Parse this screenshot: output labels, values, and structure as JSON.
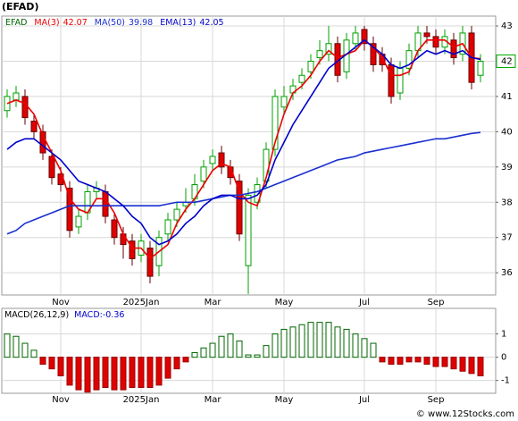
{
  "title": "(EFAD)",
  "watermark": "© www.12Stocks.com",
  "chart_data": [
    {
      "type": "candlestick",
      "symbol": "EFAD",
      "categories": [
        null,
        null,
        null,
        null,
        null,
        null,
        "Nov",
        null,
        null,
        null,
        null,
        null,
        null,
        null,
        null,
        "2025Jan",
        null,
        null,
        null,
        null,
        null,
        null,
        null,
        "Mar",
        null,
        null,
        null,
        null,
        null,
        null,
        null,
        "May",
        null,
        null,
        null,
        null,
        null,
        null,
        null,
        null,
        "Jul",
        null,
        null,
        null,
        null,
        null,
        null,
        null,
        "Sep",
        null,
        null,
        null,
        null,
        null
      ],
      "open": [
        40.6,
        40.9,
        41.0,
        40.3,
        40.0,
        39.3,
        38.8,
        38.4,
        37.3,
        37.7,
        38.3,
        38.3,
        37.5,
        37.1,
        36.9,
        36.5,
        36.7,
        36.2,
        37.1,
        37.5,
        37.9,
        38.1,
        38.6,
        39.1,
        39.4,
        39.0,
        38.6,
        36.2,
        38.0,
        38.6,
        39.5,
        40.7,
        41.1,
        41.4,
        41.7,
        42.1,
        42.2,
        42.5,
        41.7,
        42.5,
        42.9,
        42.5,
        42.2,
        41.9,
        41.1,
        41.8,
        42.3,
        42.8,
        42.7,
        42.4,
        42.6,
        42.2,
        42.8,
        41.6
      ],
      "high": [
        41.2,
        41.3,
        41.2,
        40.5,
        40.2,
        39.5,
        39.0,
        38.6,
        37.8,
        38.5,
        38.6,
        38.5,
        37.7,
        37.3,
        37.1,
        37.1,
        36.9,
        37.2,
        37.7,
        38.0,
        38.4,
        38.8,
        39.2,
        39.5,
        39.6,
        39.2,
        38.8,
        38.4,
        38.7,
        39.7,
        41.2,
        41.3,
        41.5,
        41.8,
        42.2,
        42.6,
        43.0,
        42.7,
        42.8,
        43.0,
        43.0,
        42.7,
        42.4,
        42.1,
        42.0,
        42.5,
        43.0,
        43.0,
        42.9,
        42.9,
        42.8,
        43.0,
        43.0,
        42.2
      ],
      "low": [
        40.4,
        40.7,
        40.2,
        39.8,
        39.2,
        38.5,
        38.3,
        37.0,
        37.1,
        37.5,
        38.1,
        37.4,
        36.8,
        36.4,
        36.2,
        36.3,
        35.7,
        35.9,
        36.9,
        37.3,
        37.7,
        37.9,
        38.4,
        38.9,
        38.8,
        38.5,
        36.9,
        35.4,
        37.8,
        38.4,
        39.3,
        40.5,
        40.9,
        41.2,
        41.5,
        41.9,
        42.0,
        41.4,
        41.5,
        42.3,
        42.3,
        41.7,
        41.7,
        40.8,
        40.9,
        41.6,
        42.1,
        42.5,
        42.2,
        42.2,
        41.9,
        42.0,
        41.2,
        41.4
      ],
      "close": [
        41.0,
        41.1,
        40.4,
        40.0,
        39.4,
        38.7,
        38.5,
        37.2,
        37.6,
        38.3,
        38.4,
        37.6,
        37.0,
        36.8,
        36.4,
        36.9,
        35.9,
        37.0,
        37.5,
        37.8,
        38.0,
        38.5,
        39.0,
        39.3,
        39.0,
        38.7,
        37.1,
        38.2,
        38.5,
        39.5,
        41.0,
        41.0,
        41.3,
        41.6,
        42.0,
        42.3,
        42.5,
        41.6,
        42.6,
        42.8,
        42.5,
        41.9,
        41.9,
        41.0,
        41.8,
        42.3,
        42.8,
        42.7,
        42.4,
        42.7,
        42.1,
        42.8,
        41.4,
        42.0
      ],
      "up_color": "#00a000",
      "down_color": "#e00000",
      "series": [
        {
          "name": "MA(3)",
          "legend_value": "42.07",
          "color": "#ee0000",
          "values": [
            40.8,
            40.9,
            40.8,
            40.5,
            39.9,
            39.4,
            38.9,
            38.1,
            37.8,
            37.7,
            38.1,
            38.1,
            37.7,
            37.1,
            36.7,
            36.7,
            36.4,
            36.6,
            36.8,
            37.4,
            37.8,
            38.1,
            38.5,
            38.9,
            39.1,
            39.0,
            38.3,
            38.0,
            37.9,
            38.7,
            39.7,
            40.5,
            41.1,
            41.3,
            41.6,
            42.0,
            42.3,
            42.1,
            42.2,
            42.3,
            42.6,
            42.4,
            42.1,
            41.6,
            41.6,
            41.7,
            42.3,
            42.6,
            42.6,
            42.6,
            42.4,
            42.5,
            42.1,
            42.07
          ]
        },
        {
          "name": "MA(50)",
          "legend_value": "39.98",
          "color": "#1a2fd0",
          "values": [
            37.1,
            37.2,
            37.4,
            37.5,
            37.6,
            37.7,
            37.8,
            37.9,
            37.9,
            37.9,
            37.9,
            37.9,
            37.9,
            37.9,
            37.9,
            37.9,
            37.9,
            37.9,
            37.95,
            38.0,
            38.0,
            38.0,
            38.05,
            38.1,
            38.15,
            38.2,
            38.2,
            38.25,
            38.3,
            38.4,
            38.5,
            38.6,
            38.7,
            38.8,
            38.9,
            39.0,
            39.1,
            39.2,
            39.25,
            39.3,
            39.4,
            39.45,
            39.5,
            39.55,
            39.6,
            39.65,
            39.7,
            39.75,
            39.8,
            39.8,
            39.85,
            39.9,
            39.95,
            39.98
          ]
        },
        {
          "name": "EMA(13)",
          "legend_value": "42.05",
          "color": "#0000cc",
          "values": [
            39.5,
            39.7,
            39.8,
            39.8,
            39.6,
            39.4,
            39.2,
            38.9,
            38.6,
            38.5,
            38.4,
            38.3,
            38.1,
            37.9,
            37.6,
            37.4,
            37.0,
            36.8,
            36.9,
            37.1,
            37.4,
            37.6,
            37.9,
            38.1,
            38.2,
            38.2,
            38.1,
            38.1,
            38.2,
            38.5,
            39.2,
            39.7,
            40.2,
            40.6,
            41.0,
            41.4,
            41.8,
            42.0,
            42.2,
            42.4,
            42.6,
            42.4,
            42.2,
            41.9,
            41.8,
            41.9,
            42.1,
            42.3,
            42.2,
            42.3,
            42.2,
            42.3,
            42.1,
            42.05
          ]
        }
      ],
      "ylim": [
        35.37,
        43.28
      ],
      "yticks": [
        36,
        37,
        38,
        39,
        40,
        41,
        42,
        43
      ],
      "current_price": 42,
      "grid": true
    },
    {
      "type": "bar",
      "title": "MACD(26,12,9)",
      "label": "MACD:-0.36",
      "up_color": "#006600",
      "down_color": "#e00000",
      "values": [
        1.0,
        0.9,
        0.6,
        0.3,
        -0.3,
        -0.5,
        -0.8,
        -1.2,
        -1.4,
        -1.5,
        -1.4,
        -1.3,
        -1.4,
        -1.4,
        -1.3,
        -1.3,
        -1.3,
        -1.2,
        -0.9,
        -0.5,
        -0.2,
        0.2,
        0.4,
        0.6,
        0.9,
        1.0,
        0.7,
        0.1,
        0.1,
        0.5,
        1.0,
        1.2,
        1.3,
        1.4,
        1.5,
        1.5,
        1.5,
        1.3,
        1.2,
        1.0,
        0.8,
        0.6,
        -0.2,
        -0.3,
        -0.3,
        -0.2,
        -0.2,
        -0.3,
        -0.4,
        -0.4,
        -0.5,
        -0.6,
        -0.7,
        -0.8
      ],
      "ylim": [
        -1.55,
        2.1
      ],
      "yticks": [
        1,
        0,
        -1
      ],
      "grid": true
    }
  ]
}
